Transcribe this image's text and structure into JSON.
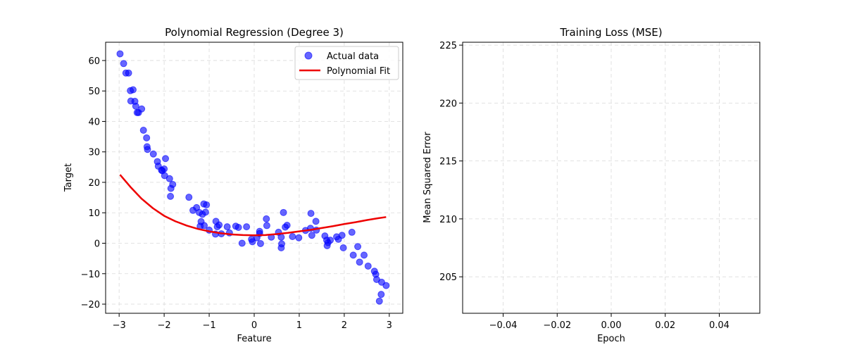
{
  "chart_data": [
    {
      "type": "scatter",
      "title": "Polynomial Regression (Degree 3)",
      "xlabel": "Feature",
      "ylabel": "Target",
      "xlim": [
        -3.3,
        3.3
      ],
      "ylim": [
        -23,
        66
      ],
      "x_ticks": [
        -3,
        -2,
        -1,
        0,
        1,
        2,
        3
      ],
      "y_ticks": [
        -20,
        -10,
        0,
        10,
        20,
        30,
        40,
        50,
        60
      ],
      "grid": true,
      "legend_position": "top-right",
      "series": [
        {
          "name": "Actual data",
          "kind": "scatter",
          "color": "#0000ff",
          "points": [
            [
              -2.98,
              62.2
            ],
            [
              -2.9,
              59.0
            ],
            [
              -2.85,
              55.9
            ],
            [
              -2.79,
              55.9
            ],
            [
              -2.75,
              50.1
            ],
            [
              -2.69,
              50.4
            ],
            [
              -2.74,
              46.7
            ],
            [
              -2.65,
              46.6
            ],
            [
              -2.63,
              45.0
            ],
            [
              -2.6,
              42.9
            ],
            [
              -2.57,
              42.9
            ],
            [
              -2.5,
              44.1
            ],
            [
              -2.46,
              37.1
            ],
            [
              -2.39,
              34.6
            ],
            [
              -2.38,
              31.7
            ],
            [
              -2.37,
              30.8
            ],
            [
              -2.24,
              29.3
            ],
            [
              -2.15,
              26.8
            ],
            [
              -2.13,
              25.3
            ],
            [
              -2.06,
              24.0
            ],
            [
              -2.0,
              24.4
            ],
            [
              -2.04,
              23.8
            ],
            [
              -1.97,
              27.8
            ],
            [
              -1.99,
              22.2
            ],
            [
              -1.88,
              21.2
            ],
            [
              -1.81,
              19.3
            ],
            [
              -1.85,
              18.0
            ],
            [
              -1.86,
              15.4
            ],
            [
              -1.45,
              15.1
            ],
            [
              -1.36,
              10.8
            ],
            [
              -1.28,
              11.7
            ],
            [
              -1.22,
              10.1
            ],
            [
              -1.12,
              12.9
            ],
            [
              -1.06,
              12.6
            ],
            [
              -1.15,
              9.5
            ],
            [
              -1.08,
              10.2
            ],
            [
              -1.18,
              7.1
            ],
            [
              -1.11,
              5.8
            ],
            [
              -1.2,
              5.6
            ],
            [
              -1.0,
              4.3
            ],
            [
              -0.85,
              7.2
            ],
            [
              -0.82,
              5.4
            ],
            [
              -0.78,
              6.0
            ],
            [
              -0.73,
              3.1
            ],
            [
              -0.86,
              3.0
            ],
            [
              -0.6,
              5.4
            ],
            [
              -0.55,
              3.4
            ],
            [
              -0.41,
              5.6
            ],
            [
              -0.35,
              5.2
            ],
            [
              -0.27,
              0.0
            ],
            [
              -0.17,
              5.4
            ],
            [
              -0.06,
              1.3
            ],
            [
              -0.04,
              0.5
            ],
            [
              0.06,
              1.8
            ],
            [
              0.12,
              3.9
            ],
            [
              0.12,
              3.2
            ],
            [
              0.14,
              -0.1
            ],
            [
              0.27,
              8.0
            ],
            [
              0.28,
              5.8
            ],
            [
              0.38,
              2.0
            ],
            [
              0.54,
              3.6
            ],
            [
              0.6,
              2.0
            ],
            [
              0.61,
              -0.2
            ],
            [
              0.6,
              -1.5
            ],
            [
              0.65,
              10.1
            ],
            [
              0.69,
              5.3
            ],
            [
              0.73,
              5.9
            ],
            [
              0.85,
              2.2
            ],
            [
              0.99,
              1.8
            ],
            [
              1.14,
              4.2
            ],
            [
              1.25,
              4.9
            ],
            [
              1.28,
              2.6
            ],
            [
              1.26,
              9.8
            ],
            [
              1.37,
              7.2
            ],
            [
              1.38,
              4.3
            ],
            [
              1.57,
              2.4
            ],
            [
              1.61,
              1.0
            ],
            [
              1.64,
              0.2
            ],
            [
              1.62,
              -0.8
            ],
            [
              1.69,
              1.0
            ],
            [
              1.83,
              2.1
            ],
            [
              1.87,
              1.3
            ],
            [
              1.95,
              2.6
            ],
            [
              1.98,
              -1.5
            ],
            [
              2.17,
              3.6
            ],
            [
              2.2,
              -3.9
            ],
            [
              2.3,
              -1.1
            ],
            [
              2.34,
              -6.2
            ],
            [
              2.44,
              -3.9
            ],
            [
              2.53,
              -7.5
            ],
            [
              2.67,
              -9.2
            ],
            [
              2.7,
              -10.2
            ],
            [
              2.72,
              -11.9
            ],
            [
              2.78,
              -19.0
            ],
            [
              2.82,
              -16.8
            ],
            [
              2.83,
              -12.8
            ],
            [
              2.93,
              -13.9
            ]
          ]
        },
        {
          "name": "Polynomial Fit",
          "kind": "line",
          "color": "#ee0000",
          "points": [
            [
              -2.98,
              22.5
            ],
            [
              -2.75,
              18.5
            ],
            [
              -2.5,
              14.6
            ],
            [
              -2.25,
              11.5
            ],
            [
              -2.0,
              9.0
            ],
            [
              -1.75,
              7.2
            ],
            [
              -1.5,
              5.8
            ],
            [
              -1.25,
              4.7
            ],
            [
              -1.0,
              3.9
            ],
            [
              -0.75,
              3.3
            ],
            [
              -0.5,
              2.9
            ],
            [
              -0.25,
              2.7
            ],
            [
              0.0,
              2.6
            ],
            [
              0.25,
              2.7
            ],
            [
              0.5,
              3.0
            ],
            [
              0.75,
              3.4
            ],
            [
              1.0,
              3.9
            ],
            [
              1.25,
              4.4
            ],
            [
              1.5,
              5.0
            ],
            [
              1.75,
              5.6
            ],
            [
              2.0,
              6.3
            ],
            [
              2.25,
              6.9
            ],
            [
              2.5,
              7.6
            ],
            [
              2.75,
              8.2
            ],
            [
              2.93,
              8.6
            ]
          ]
        }
      ]
    },
    {
      "type": "line",
      "title": "Training Loss (MSE)",
      "xlabel": "Epoch",
      "ylabel": "Mean Squared Error",
      "xlim": [
        -0.055,
        0.055
      ],
      "ylim": [
        201.85,
        225.25
      ],
      "x_ticks": [
        -0.04,
        -0.02,
        0.0,
        0.02,
        0.04
      ],
      "x_tick_labels": [
        "−0.04",
        "−0.02",
        "0.00",
        "0.02",
        "0.04"
      ],
      "y_ticks": [
        205,
        210,
        215,
        220,
        225
      ],
      "grid": true,
      "series": []
    }
  ]
}
